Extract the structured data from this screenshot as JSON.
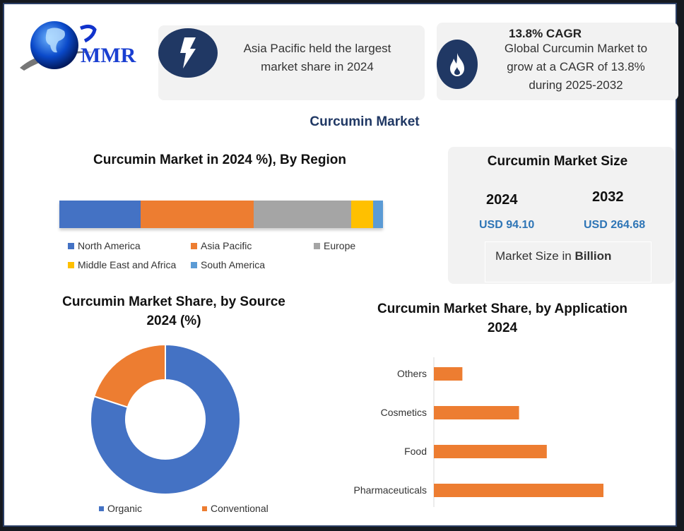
{
  "logo": {
    "text": "MMR"
  },
  "highlights": [
    {
      "icon": "lightning-icon",
      "text": "Asia Pacific held the largest market share in 2024"
    },
    {
      "icon": "flame-icon",
      "title": "13.8% CAGR",
      "text": "Global Curcumin Market to grow at a CAGR of 13.8% during 2025-2032"
    }
  ],
  "main_title": "Curcumin Market",
  "market_size": {
    "title": "Curcumin Market Size",
    "years": [
      {
        "year": "2024",
        "value": "USD 94.10"
      },
      {
        "year": "2032",
        "value": "USD 264.68"
      }
    ],
    "note_prefix": "Market Size in ",
    "note_bold": "Billion",
    "value_color": "#2e75b6"
  },
  "chart_data": [
    {
      "type": "bar",
      "orientation": "horizontal-stacked",
      "title": "Curcumin Market in 2024 %), By Region",
      "legend_position": "bottom",
      "series": [
        {
          "name": "North America",
          "value": 25.2,
          "color": "#4472c4"
        },
        {
          "name": "Asia Pacific",
          "value": 34.8,
          "color": "#ed7d31"
        },
        {
          "name": "Europe",
          "value": 30.2,
          "color": "#a5a5a5"
        },
        {
          "name": "Middle East and Africa",
          "value": 6.8,
          "color": "#ffc000"
        },
        {
          "name": "South America",
          "value": 3.0,
          "color": "#5b9bd5"
        }
      ]
    },
    {
      "type": "pie",
      "donut": true,
      "title": "Curcumin Market Share, by Source 2024 (%)",
      "legend_position": "bottom",
      "series": [
        {
          "name": "Organic",
          "value": 80,
          "color": "#4472c4"
        },
        {
          "name": "Conventional",
          "value": 20,
          "color": "#ed7d31"
        }
      ]
    },
    {
      "type": "bar",
      "orientation": "horizontal",
      "title": "Curcumin Market Share, by Application 2024",
      "categories": [
        "Others",
        "Cosmetics",
        "Food",
        "Pharmaceuticals"
      ],
      "values": [
        7.2,
        21.5,
        28.5,
        42.8
      ],
      "color": "#ed7d31",
      "grid": false
    }
  ]
}
